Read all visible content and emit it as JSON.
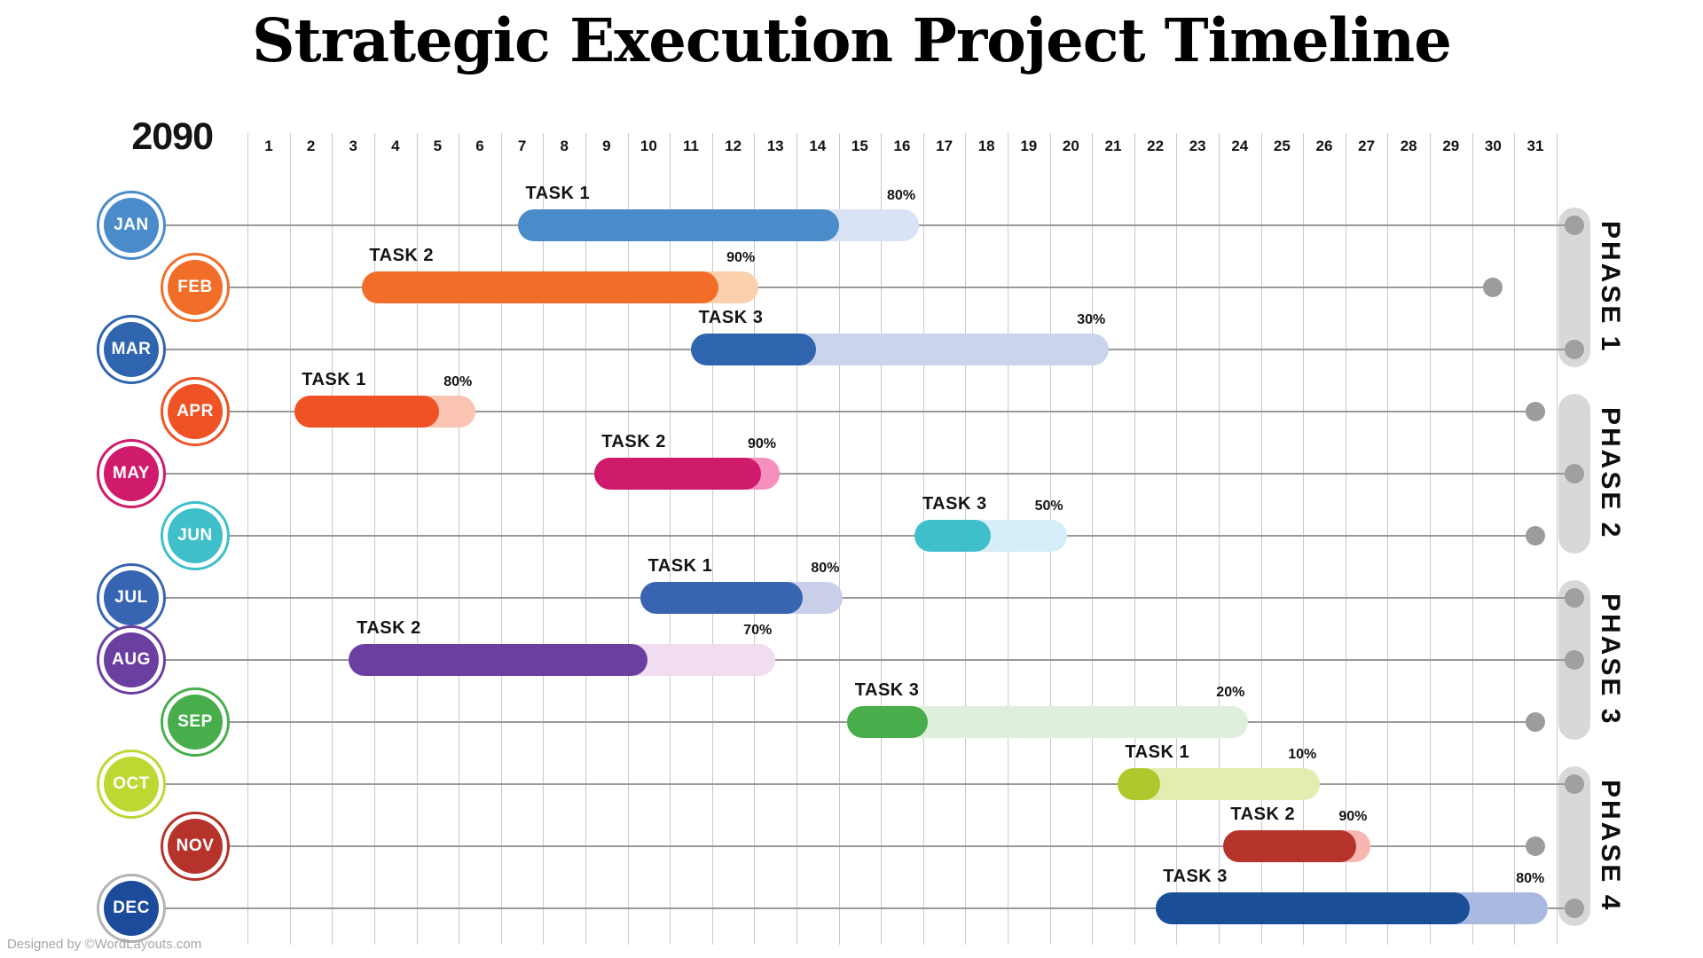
{
  "title": "Strategic Execution Project Timeline",
  "year": "2090",
  "footer": "Designed by ©WordLayouts.com",
  "chart_data": {
    "type": "bar",
    "subtype": "gantt-timeline",
    "title": "Strategic Execution Project Timeline",
    "year": "2090",
    "x_axis": {
      "unit": "day-of-month",
      "ticks": [
        1,
        2,
        3,
        4,
        5,
        6,
        7,
        8,
        9,
        10,
        11,
        12,
        13,
        14,
        15,
        16,
        17,
        18,
        19,
        20,
        21,
        22,
        23,
        24,
        25,
        26,
        27,
        28,
        29,
        30,
        31
      ],
      "range": [
        1,
        31
      ],
      "grid": true
    },
    "legend": "none",
    "rows": [
      {
        "month": "JAN",
        "side": "left",
        "circle_color": "#4A8BC9",
        "ring_color": "#4A8BC9",
        "task": "TASK 1",
        "progress_pct": 80,
        "progress_label": "80%",
        "start_day": 6.9,
        "end_day": 16.4,
        "bar_color": "#4A8BC9",
        "remaining_color": "#D9E3F5",
        "ends_at_phase_bar": true,
        "line_end_day": null,
        "phase": "PHASE 1"
      },
      {
        "month": "FEB",
        "side": "right",
        "circle_color": "#F26E28",
        "ring_color": "#F26E28",
        "task": "TASK 2",
        "progress_pct": 90,
        "progress_label": "90%",
        "start_day": 3.2,
        "end_day": 12.6,
        "bar_color": "#F26E28",
        "remaining_color": "#FBD0AC",
        "ends_at_phase_bar": false,
        "line_end_day": 30,
        "phase": "PHASE 1"
      },
      {
        "month": "MAR",
        "side": "left",
        "circle_color": "#2F64AE",
        "ring_color": "#2F64AE",
        "task": "TASK 3",
        "progress_pct": 30,
        "progress_label": "30%",
        "start_day": 11.0,
        "end_day": 20.9,
        "bar_color": "#2F64AE",
        "remaining_color": "#CBD4ED",
        "ends_at_phase_bar": true,
        "line_end_day": null,
        "phase": "PHASE 1"
      },
      {
        "month": "APR",
        "side": "right",
        "circle_color": "#EE5225",
        "ring_color": "#EE5225",
        "task": "TASK 1",
        "progress_pct": 80,
        "progress_label": "80%",
        "start_day": 1.6,
        "end_day": 5.9,
        "bar_color": "#EE5225",
        "remaining_color": "#FAC3B2",
        "ends_at_phase_bar": false,
        "line_end_day": 31,
        "phase": "PHASE 2"
      },
      {
        "month": "MAY",
        "side": "left",
        "circle_color": "#D01A6B",
        "ring_color": "#D01A6B",
        "task": "TASK 2",
        "progress_pct": 90,
        "progress_label": "90%",
        "start_day": 8.7,
        "end_day": 13.1,
        "bar_color": "#D01A6B",
        "remaining_color": "#F590BE",
        "ends_at_phase_bar": true,
        "line_end_day": null,
        "phase": "PHASE 2"
      },
      {
        "month": "JUN",
        "side": "right",
        "circle_color": "#3EBFC9",
        "ring_color": "#3EBFC9",
        "task": "TASK 3",
        "progress_pct": 50,
        "progress_label": "50%",
        "start_day": 16.3,
        "end_day": 19.9,
        "bar_color": "#3EBFC9",
        "remaining_color": "#D5EEF9",
        "ends_at_phase_bar": false,
        "line_end_day": 31,
        "phase": "PHASE 2"
      },
      {
        "month": "JUL",
        "side": "left",
        "circle_color": "#3765B2",
        "ring_color": "#3765B2",
        "task": "TASK 1",
        "progress_pct": 80,
        "progress_label": "80%",
        "start_day": 9.8,
        "end_day": 14.6,
        "bar_color": "#3765B2",
        "remaining_color": "#C9CFE9",
        "ends_at_phase_bar": true,
        "line_end_day": null,
        "phase": "PHASE 3"
      },
      {
        "month": "AUG",
        "side": "left",
        "circle_color": "#6B3FA0",
        "ring_color": "#6B3FA0",
        "task": "TASK 2",
        "progress_pct": 70,
        "progress_label": "70%",
        "start_day": 2.9,
        "end_day": 13.0,
        "bar_color": "#6B3FA0",
        "remaining_color": "#F0DEF0",
        "ends_at_phase_bar": true,
        "line_end_day": null,
        "phase": "PHASE 3"
      },
      {
        "month": "SEP",
        "side": "right",
        "circle_color": "#48AE4C",
        "ring_color": "#48AE4C",
        "task": "TASK 3",
        "progress_pct": 20,
        "progress_label": "20%",
        "start_day": 14.7,
        "end_day": 24.2,
        "bar_color": "#48AE4C",
        "remaining_color": "#DEEFDB",
        "ends_at_phase_bar": false,
        "line_end_day": 31,
        "phase": "PHASE 3"
      },
      {
        "month": "OCT",
        "side": "left",
        "circle_color": "#BFD732",
        "ring_color": "#BFD732",
        "task": "TASK 1",
        "progress_pct": 10,
        "progress_label": "10%",
        "start_day": 21.1,
        "end_day": 25.9,
        "bar_color": "#AFC92C",
        "remaining_color": "#E3EDB0",
        "ends_at_phase_bar": true,
        "line_end_day": null,
        "phase": "PHASE 4"
      },
      {
        "month": "NOV",
        "side": "right",
        "circle_color": "#B5332A",
        "ring_color": "#B5332A",
        "task": "TASK 2",
        "progress_pct": 90,
        "progress_label": "90%",
        "start_day": 23.6,
        "end_day": 27.1,
        "bar_color": "#B5332A",
        "remaining_color": "#F7B7B1",
        "ends_at_phase_bar": false,
        "line_end_day": 31,
        "phase": "PHASE 4"
      },
      {
        "month": "DEC",
        "side": "left",
        "circle_color": "#1C4B9B",
        "ring_color": "#B3B3B3",
        "task": "TASK 3",
        "progress_pct": 80,
        "progress_label": "80%",
        "start_day": 22.0,
        "end_day": 31.3,
        "bar_color": "#1A4F97",
        "remaining_color": "#A9B9E2",
        "ends_at_phase_bar": true,
        "line_end_day": null,
        "phase": "PHASE 4"
      }
    ],
    "phases": [
      {
        "label": "PHASE 1",
        "first_row": 0,
        "last_row": 2,
        "bar_color": "#D8D8D8"
      },
      {
        "label": "PHASE 2",
        "first_row": 3,
        "last_row": 5,
        "bar_color": "#D8D8D8"
      },
      {
        "label": "PHASE 3",
        "first_row": 6,
        "last_row": 8,
        "bar_color": "#D8D8D8"
      },
      {
        "label": "PHASE 4",
        "first_row": 9,
        "last_row": 11,
        "bar_color": "#D8D8D8"
      }
    ],
    "colors": {
      "gridline": "#C9C9C9",
      "connector_line": "#9A9A9A",
      "end_dot": "#9C9C9C",
      "phase_bar": "#D8D8D8",
      "text": "#141414",
      "footer_text": "#A5A5A5"
    }
  }
}
